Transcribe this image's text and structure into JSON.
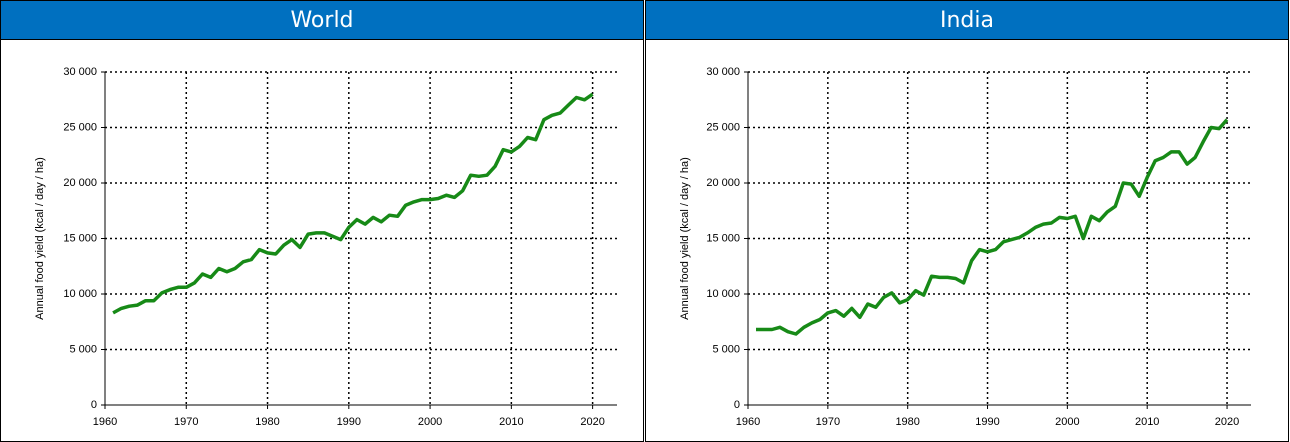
{
  "chart_data": [
    {
      "type": "line",
      "title": "World",
      "ylabel": "Annual food yield (kcal / day / ha)",
      "x": [
        1961,
        1962,
        1963,
        1964,
        1965,
        1966,
        1967,
        1968,
        1969,
        1970,
        1971,
        1972,
        1973,
        1974,
        1975,
        1976,
        1977,
        1978,
        1979,
        1980,
        1981,
        1982,
        1983,
        1984,
        1985,
        1986,
        1987,
        1988,
        1989,
        1990,
        1991,
        1992,
        1993,
        1994,
        1995,
        1996,
        1997,
        1998,
        1999,
        2000,
        2001,
        2002,
        2003,
        2004,
        2005,
        2006,
        2007,
        2008,
        2009,
        2010,
        2011,
        2012,
        2013,
        2014,
        2015,
        2016,
        2017,
        2018,
        2019,
        2020
      ],
      "series": [
        {
          "name": "World",
          "color": "#178a17",
          "values": [
            8300,
            8700,
            8900,
            9000,
            9400,
            9400,
            10100,
            10400,
            10600,
            10600,
            11000,
            11800,
            11500,
            12300,
            12000,
            12300,
            12900,
            13100,
            14000,
            13700,
            13600,
            14400,
            14900,
            14200,
            15400,
            15500,
            15500,
            15200,
            14900,
            16000,
            16700,
            16300,
            16900,
            16500,
            17100,
            17000,
            18000,
            18300,
            18500,
            18500,
            18600,
            18900,
            18700,
            19300,
            20700,
            20600,
            20700,
            21500,
            23000,
            22800,
            23300,
            24100,
            23900,
            25700,
            26100,
            26300,
            27000,
            27700,
            27500,
            28000
          ]
        }
      ],
      "xlim": [
        1960,
        2023
      ],
      "xticks": [
        1960,
        1970,
        1980,
        1990,
        2000,
        2010,
        2020
      ],
      "ylim": [
        0,
        30000
      ],
      "yticks": [
        0,
        {
          "value": 5000,
          "label": "5 000"
        },
        {
          "value": 10000,
          "label": "10 000"
        },
        {
          "value": 15000,
          "label": "15 000"
        },
        {
          "value": 20000,
          "label": "20 000"
        },
        {
          "value": 25000,
          "label": "25 000"
        },
        {
          "value": 30000,
          "label": "30 000"
        }
      ],
      "grid": true
    },
    {
      "type": "line",
      "title": "India",
      "ylabel": "Annual food yield (kcal / day / ha)",
      "x": [
        1961,
        1962,
        1963,
        1964,
        1965,
        1966,
        1967,
        1968,
        1969,
        1970,
        1971,
        1972,
        1973,
        1974,
        1975,
        1976,
        1977,
        1978,
        1979,
        1980,
        1981,
        1982,
        1983,
        1984,
        1985,
        1986,
        1987,
        1988,
        1989,
        1990,
        1991,
        1992,
        1993,
        1994,
        1995,
        1996,
        1997,
        1998,
        1999,
        2000,
        2001,
        2002,
        2003,
        2004,
        2005,
        2006,
        2007,
        2008,
        2009,
        2010,
        2011,
        2012,
        2013,
        2014,
        2015,
        2016,
        2017,
        2018,
        2019,
        2020
      ],
      "series": [
        {
          "name": "India",
          "color": "#178a17",
          "values": [
            6800,
            6800,
            6800,
            7000,
            6600,
            6400,
            7000,
            7400,
            7700,
            8300,
            8500,
            8000,
            8700,
            7900,
            9100,
            8800,
            9700,
            10100,
            9200,
            9500,
            10300,
            9900,
            11600,
            11500,
            11500,
            11400,
            11000,
            13000,
            14000,
            13800,
            14000,
            14700,
            14900,
            15100,
            15500,
            16000,
            16300,
            16400,
            16900,
            16800,
            17000,
            15000,
            17000,
            16600,
            17400,
            17900,
            20000,
            19900,
            18800,
            20500,
            22000,
            22300,
            22800,
            22800,
            21700,
            22300,
            23700,
            25000,
            24900,
            25700
          ]
        }
      ],
      "xlim": [
        1960,
        2023
      ],
      "xticks": [
        1960,
        1970,
        1980,
        1990,
        2000,
        2010,
        2020
      ],
      "ylim": [
        0,
        30000
      ],
      "yticks": [
        0,
        {
          "value": 5000,
          "label": "5 000"
        },
        {
          "value": 10000,
          "label": "10 000"
        },
        {
          "value": 15000,
          "label": "15 000"
        },
        {
          "value": 20000,
          "label": "20 000"
        },
        {
          "value": 25000,
          "label": "25 000"
        },
        {
          "value": 30000,
          "label": "30 000"
        }
      ],
      "grid": true
    }
  ]
}
